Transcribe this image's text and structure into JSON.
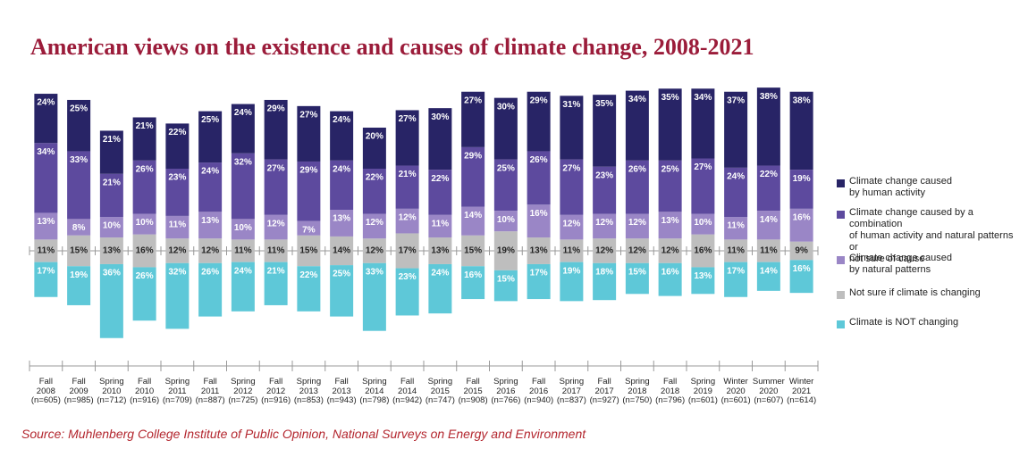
{
  "chart_data": {
    "type": "diverging-bar",
    "title": "American views on the existence and causes of climate change, 2008-2021",
    "source": "Source: Muhlenberg College Institute of Public Opinion, National Surveys on Energy and Environment",
    "categories": [
      "Fall\n2008",
      "Fall\n2009",
      "Spring\n2010",
      "Fall\n2010",
      "Spring\n2011",
      "Fall\n2011",
      "Spring\n2012",
      "Fall\n2012",
      "Spring\n2013",
      "Fall\n2013",
      "Spring\n2014",
      "Fall\n2014",
      "Spring\n2015",
      "Fall\n2015",
      "Spring\n2016",
      "Fall\n2016",
      "Spring\n2017",
      "Fall\n2017",
      "Spring\n2018",
      "Fall\n2018",
      "Spring\n2019",
      "Winter\n2020",
      "Summer\n2020",
      "Winter\n2021"
    ],
    "sample_sizes": [
      "(n=605)",
      "(n=985)",
      "(n=712)",
      "(n=916)",
      "(n=709)",
      "(n=887)",
      "(n=725)",
      "(n=916)",
      "(n=853)",
      "(n=943)",
      "(n=798)",
      "(n=942)",
      "(n=747)",
      "(n=908)",
      "(n=766)",
      "(n=940)",
      "(n=837)",
      "(n=927)",
      "(n=750)",
      "(n=796)",
      "(n=601)",
      "(n=601)",
      "(n=607)",
      "(n=614)"
    ],
    "series": [
      {
        "name": "Climate change caused\nby human activity",
        "color": "#282466",
        "values": [
          24,
          25,
          21,
          21,
          22,
          25,
          24,
          29,
          27,
          24,
          20,
          27,
          30,
          27,
          30,
          29,
          31,
          35,
          34,
          35,
          34,
          37,
          38,
          38
        ],
        "value_labels": [
          "24%",
          "25%",
          "21%",
          "21%",
          "22%",
          "25%",
          "24%",
          "29%",
          "27%",
          "24%",
          "20%",
          "27%",
          "30%",
          "27%",
          "30%",
          "29%",
          "31%",
          "35%",
          "34%",
          "35%",
          "34%",
          "37%",
          "38%",
          "38%"
        ]
      },
      {
        "name": "Climate change caused by a combination\nof human activity and natural patterns or\nnot sure of cause",
        "color": "#5d4a9e",
        "values": [
          34,
          33,
          21,
          26,
          23,
          24,
          32,
          27,
          29,
          24,
          22,
          21,
          22,
          29,
          25,
          26,
          27,
          23,
          26,
          25,
          27,
          24,
          22,
          19
        ],
        "value_labels": [
          "34%",
          "33%",
          "21%",
          "26%",
          "23%",
          "24%",
          "32%",
          "27%",
          "29%",
          "24%",
          "22%",
          "21%",
          "22%",
          "29%",
          "25%",
          "26%",
          "27%",
          "23%",
          "26%",
          "25%",
          "27%",
          "24%",
          "22%",
          "19%"
        ]
      },
      {
        "name": "Climate change caused\nby natural patterns",
        "color": "#9a86c6",
        "values": [
          13,
          8,
          10,
          10,
          11,
          13,
          10,
          12,
          7,
          13,
          12,
          12,
          11,
          14,
          10,
          16,
          12,
          12,
          12,
          13,
          10,
          11,
          14,
          16
        ],
        "value_labels": [
          "13%",
          "8%",
          "10%",
          "10%",
          "11%",
          "13%",
          "10%",
          "12%",
          "7%",
          "13%",
          "12%",
          "12%",
          "11%",
          "14%",
          "10%",
          "16%",
          "12%",
          "12%",
          "12%",
          "13%",
          "10%",
          "11%",
          "14%",
          "16%"
        ]
      },
      {
        "name": "Not sure if climate is changing",
        "color": "#bebebe",
        "values": [
          11,
          15,
          13,
          16,
          12,
          12,
          11,
          11,
          15,
          14,
          12,
          17,
          13,
          15,
          19,
          13,
          11,
          12,
          12,
          12,
          16,
          11,
          11,
          9
        ],
        "value_labels": [
          "11%",
          "15%",
          "13%",
          "16%",
          "12%",
          "12%",
          "11%",
          "11%",
          "15%",
          "14%",
          "12%",
          "17%",
          "13%",
          "15%",
          "19%",
          "13%",
          "11%",
          "12%",
          "12%",
          "12%",
          "16%",
          "11%",
          "11%",
          "9%"
        ]
      },
      {
        "name": "Climate is NOT changing",
        "color": "#5ec8d8",
        "values": [
          17,
          19,
          36,
          26,
          32,
          26,
          24,
          21,
          22,
          25,
          33,
          23,
          24,
          16,
          15,
          17,
          19,
          18,
          15,
          16,
          13,
          17,
          14,
          16
        ],
        "value_labels": [
          "17%",
          "19%",
          "36%",
          "26%",
          "32%",
          "26%",
          "24%",
          "21%",
          "22%",
          "25%",
          "33%",
          "23%",
          "24%",
          "16%",
          "15%",
          "17%",
          "19%",
          "18%",
          "15%",
          "16%",
          "13%",
          "17%",
          "14%",
          "16%"
        ]
      }
    ]
  }
}
